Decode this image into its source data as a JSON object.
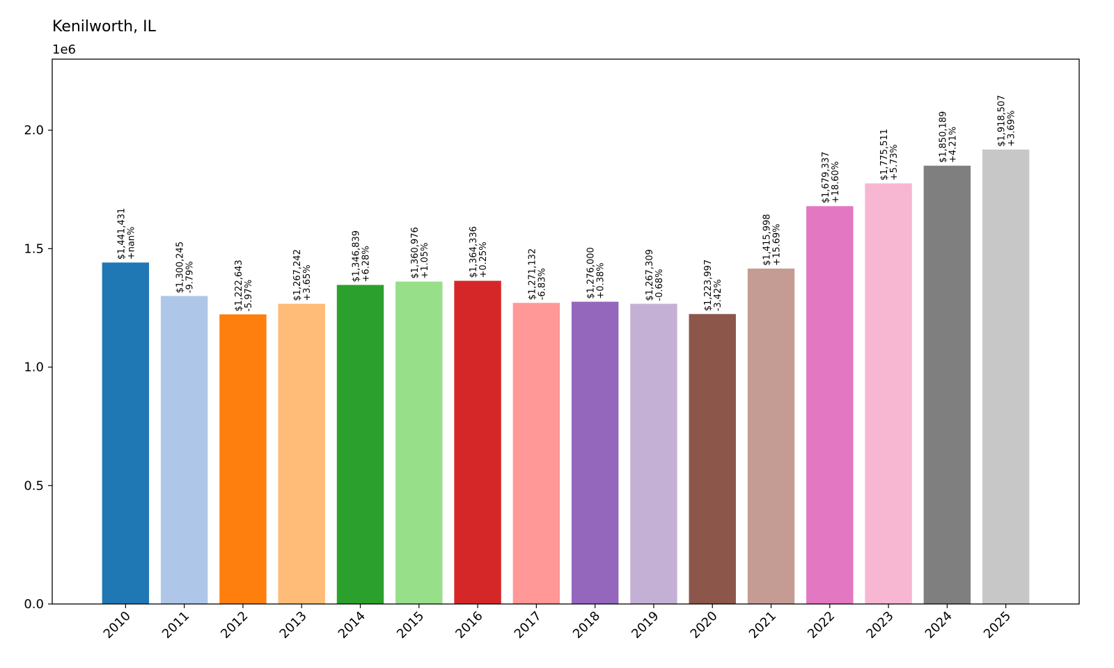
{
  "chart_data": {
    "type": "bar",
    "title": "Kenilworth, IL",
    "y_offset_label": "1e6",
    "xlabel": "",
    "ylabel": "",
    "ylim": [
      0,
      2.3
    ],
    "yticks": [
      0.0,
      0.5,
      1.0,
      1.5,
      2.0
    ],
    "ytick_labels": [
      "0.0",
      "0.5",
      "1.0",
      "1.5",
      "2.0"
    ],
    "grid": false,
    "categories": [
      "2010",
      "2011",
      "2012",
      "2013",
      "2014",
      "2015",
      "2016",
      "2017",
      "2018",
      "2019",
      "2020",
      "2021",
      "2022",
      "2023",
      "2024",
      "2025"
    ],
    "values": [
      1441431,
      1300245,
      1222643,
      1267242,
      1346839,
      1360976,
      1364336,
      1271132,
      1276000,
      1267309,
      1223997,
      1415998,
      1679337,
      1775511,
      1850189,
      1918507
    ],
    "value_labels": [
      "$1,441,431",
      "$1,300,245",
      "$1,222,643",
      "$1,267,242",
      "$1,346,839",
      "$1,360,976",
      "$1,364,336",
      "$1,271,132",
      "$1,276,000",
      "$1,267,309",
      "$1,223,997",
      "$1,415,998",
      "$1,679,337",
      "$1,775,511",
      "$1,850,189",
      "$1,918,507"
    ],
    "change_labels": [
      "+nan%",
      "-9.79%",
      "-5.97%",
      "+3.65%",
      "+6.28%",
      "+1.05%",
      "+0.25%",
      "-6.83%",
      "+0.38%",
      "-0.68%",
      "-3.42%",
      "+15.69%",
      "+18.60%",
      "+5.73%",
      "+4.21%",
      "+3.69%"
    ],
    "colors": [
      "#1f77b4",
      "#aec7e8",
      "#ff7f0e",
      "#ffbb78",
      "#2ca02c",
      "#98df8a",
      "#d62728",
      "#ff9896",
      "#9467bd",
      "#c5b0d5",
      "#8c564b",
      "#c49c94",
      "#e377c2",
      "#f7b6d2",
      "#7f7f7f",
      "#c7c7c7"
    ]
  }
}
